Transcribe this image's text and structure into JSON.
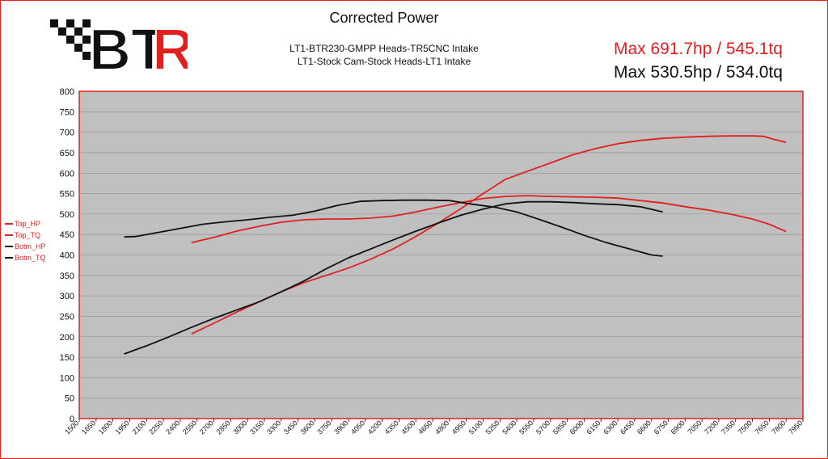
{
  "header": {
    "title": "Corrected Power",
    "subtitle_1": "LT1-BTR230-GMPP Heads-TR5CNC Intake",
    "subtitle_2": "LT1-Stock Cam-Stock Heads-LT1 Intake",
    "max_top": "Max 691.7hp / 545.1tq",
    "max_bottom": "Max 530.5hp / 534.0tq"
  },
  "logo": {
    "text": "BTR",
    "colors": {
      "letters": "#111111",
      "r": "#e02020",
      "checker": "#111111"
    }
  },
  "colors": {
    "red": "#e02020",
    "black": "#111111",
    "plot_bg": "#c0c0c0",
    "grid": "#8a8a8a"
  },
  "legend": [
    {
      "label": "Top_HP",
      "color": "#e02020"
    },
    {
      "label": "Top_TQ",
      "color": "#e02020"
    },
    {
      "label": "Botm_HP",
      "color": "#111111"
    },
    {
      "label": "Botm_TQ",
      "color": "#111111"
    }
  ],
  "chart_data": {
    "type": "line",
    "xlim": [
      1500,
      7950
    ],
    "ylim": [
      0,
      800
    ],
    "x_ticks": [
      1500,
      1650,
      1800,
      1950,
      2100,
      2250,
      2400,
      2550,
      2700,
      2850,
      3000,
      3150,
      3300,
      3450,
      3600,
      3750,
      3900,
      4050,
      4200,
      4350,
      4500,
      4650,
      4800,
      4950,
      5100,
      5250,
      5400,
      5550,
      5700,
      5850,
      6000,
      6150,
      6300,
      6450,
      6600,
      6750,
      6900,
      7050,
      7200,
      7350,
      7500,
      7650,
      7800,
      7950
    ],
    "y_ticks": [
      0,
      50,
      100,
      150,
      200,
      250,
      300,
      350,
      400,
      450,
      500,
      550,
      600,
      650,
      700,
      750,
      800
    ],
    "grid": true,
    "series": [
      {
        "name": "Top_HP",
        "color": "#e02020",
        "x": [
          2500,
          2700,
          2900,
          3100,
          3300,
          3500,
          3700,
          3900,
          4100,
          4300,
          4500,
          4700,
          4900,
          5100,
          5300,
          5500,
          5700,
          5900,
          6100,
          6300,
          6500,
          6700,
          6900,
          7100,
          7300,
          7500,
          7600,
          7700,
          7800
        ],
        "y": [
          207,
          233,
          260,
          285,
          310,
          332,
          350,
          368,
          390,
          415,
          445,
          478,
          513,
          550,
          585,
          605,
          625,
          645,
          660,
          672,
          680,
          685,
          688,
          690,
          691,
          691,
          690,
          682,
          675
        ]
      },
      {
        "name": "Top_TQ",
        "color": "#e02020",
        "x": [
          2500,
          2700,
          2900,
          3100,
          3300,
          3500,
          3700,
          3900,
          4100,
          4300,
          4500,
          4700,
          4900,
          5100,
          5300,
          5500,
          5700,
          5900,
          6100,
          6300,
          6500,
          6700,
          6900,
          7100,
          7300,
          7500,
          7650,
          7800
        ],
        "y": [
          430,
          443,
          458,
          470,
          480,
          486,
          488,
          488,
          490,
          495,
          505,
          517,
          528,
          538,
          543,
          545,
          543,
          542,
          541,
          539,
          533,
          527,
          518,
          510,
          500,
          488,
          475,
          457
        ]
      },
      {
        "name": "Botm_HP",
        "color": "#111111",
        "x": [
          1900,
          2100,
          2300,
          2500,
          2700,
          2900,
          3100,
          3300,
          3500,
          3700,
          3900,
          4100,
          4300,
          4500,
          4700,
          4900,
          5100,
          5300,
          5500,
          5700,
          5900,
          6100,
          6300,
          6500,
          6700
        ],
        "y": [
          158,
          178,
          200,
          223,
          245,
          265,
          285,
          310,
          336,
          366,
          393,
          415,
          437,
          458,
          478,
          497,
          512,
          525,
          530,
          530,
          528,
          525,
          523,
          518,
          505
        ]
      },
      {
        "name": "Botm_TQ",
        "color": "#111111",
        "x": [
          1900,
          2000,
          2200,
          2400,
          2600,
          2800,
          3000,
          3200,
          3400,
          3600,
          3800,
          4000,
          4200,
          4400,
          4600,
          4800,
          5000,
          5200,
          5400,
          5600,
          5800,
          6000,
          6200,
          6400,
          6600,
          6700
        ],
        "y": [
          444,
          445,
          455,
          465,
          475,
          481,
          486,
          492,
          497,
          507,
          521,
          531,
          533,
          534,
          534,
          533,
          524,
          517,
          505,
          487,
          468,
          448,
          430,
          415,
          400,
          397
        ]
      }
    ]
  }
}
